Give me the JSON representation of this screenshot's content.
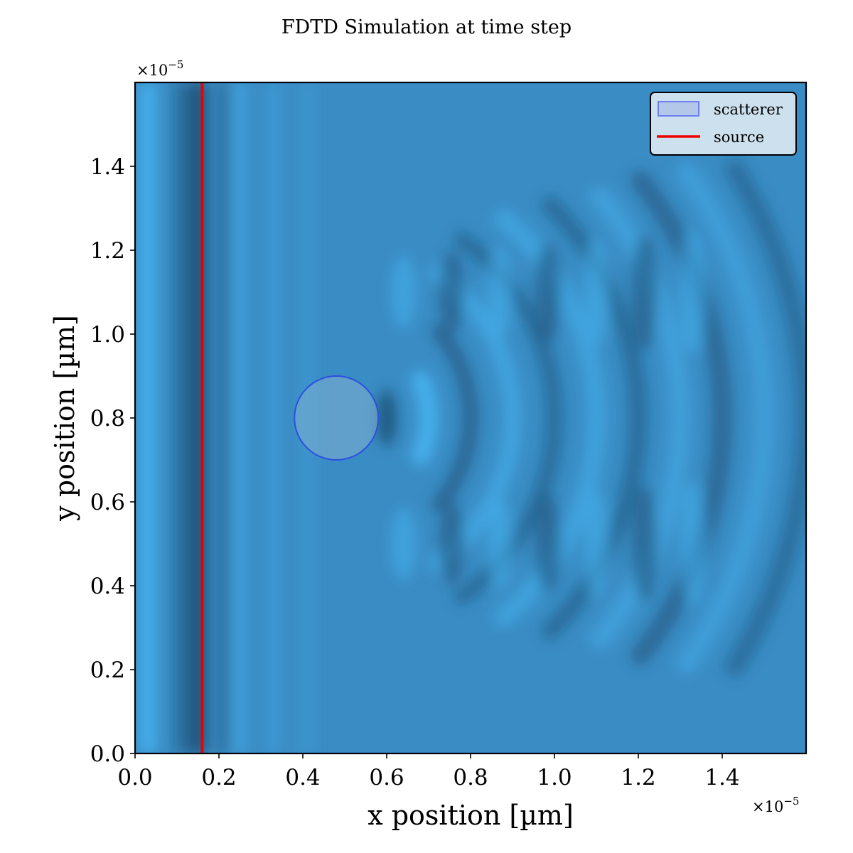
{
  "chart_data": {
    "type": "heatmap",
    "title": "FDTD Simulation at time step",
    "xlabel": "x position [µm]",
    "ylabel": "y position [µm]",
    "x_multiplier": "×10",
    "x_exponent": "−5",
    "y_multiplier": "×10",
    "y_exponent": "−5",
    "xlim": [
      0.0,
      1.6
    ],
    "ylim": [
      0.0,
      1.6
    ],
    "x_scale": 1e-05,
    "y_scale": 1e-05,
    "xticks": [
      0.0,
      0.2,
      0.4,
      0.6,
      0.8,
      1.0,
      1.2,
      1.4
    ],
    "xtick_labels": [
      "0.0",
      "0.2",
      "0.4",
      "0.6",
      "0.8",
      "1.0",
      "1.2",
      "1.4"
    ],
    "yticks": [
      0.0,
      0.2,
      0.4,
      0.6,
      0.8,
      1.0,
      1.2,
      1.4
    ],
    "ytick_labels": [
      "0.0",
      "0.2",
      "0.4",
      "0.6",
      "0.8",
      "1.0",
      "1.2",
      "1.4"
    ],
    "field": {
      "description": "wave field pattern",
      "wavelength": 0.2,
      "base_color": "#3a8cc4",
      "colors": {
        "low": "#1c4f74",
        "mid": "#3a8cc4",
        "high": "#46b2ee"
      }
    },
    "scatterer": {
      "label": "scatterer",
      "shape": "circle",
      "center": [
        0.48,
        0.8
      ],
      "radius": 0.1,
      "fill": "#7fb0d2",
      "edge": "#2b4fe0"
    },
    "source": {
      "label": "source",
      "x": 0.16,
      "color": "#ee0000"
    },
    "legend": {
      "position": "top-right",
      "entries": [
        "scatterer",
        "source"
      ]
    },
    "grid": false
  }
}
